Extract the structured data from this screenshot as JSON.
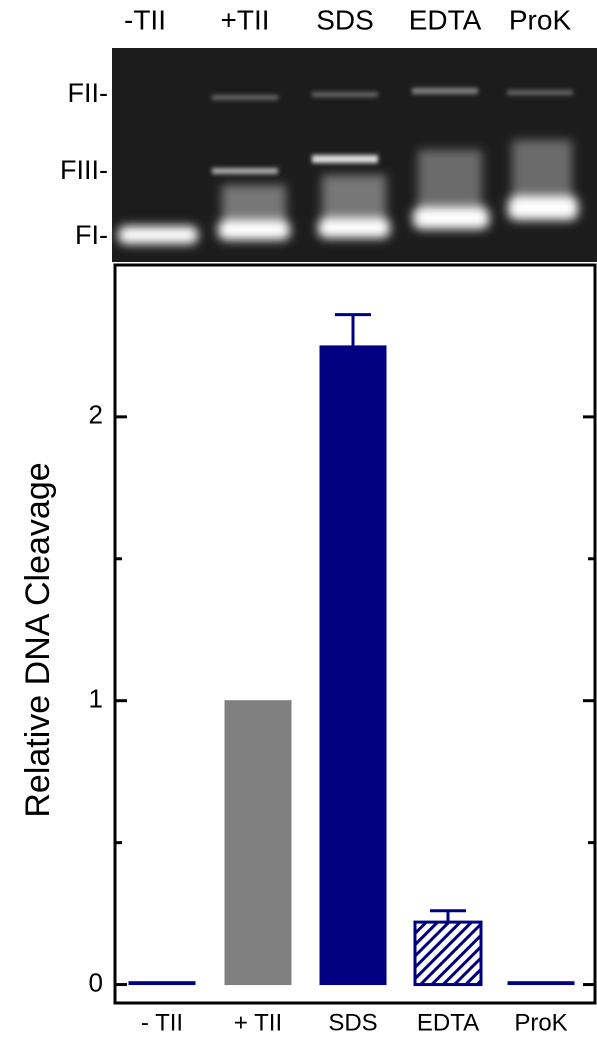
{
  "gel": {
    "lanes": [
      "-TII",
      "+TII",
      "SDS",
      "EDTA",
      "ProK"
    ],
    "bands": [
      "FII-",
      "FIII-",
      "FI-"
    ]
  },
  "chart_data": {
    "type": "bar",
    "ylabel": "Relative DNA Cleavage",
    "categories": [
      "- TII",
      "+ TII",
      "SDS",
      "EDTA",
      "ProK"
    ],
    "values": [
      0.01,
      1.0,
      2.25,
      0.22,
      0.01
    ],
    "errors": [
      null,
      null,
      0.11,
      0.04,
      null
    ],
    "colors": [
      "#000080",
      "#808080",
      "#000080",
      "#000080",
      "#000080"
    ],
    "hatched": [
      false,
      false,
      false,
      true,
      false
    ],
    "ylim": [
      -0.065,
      2.535
    ],
    "yticks": [
      0,
      1,
      2
    ],
    "yminorticks": [
      0.5,
      1.5
    ]
  }
}
